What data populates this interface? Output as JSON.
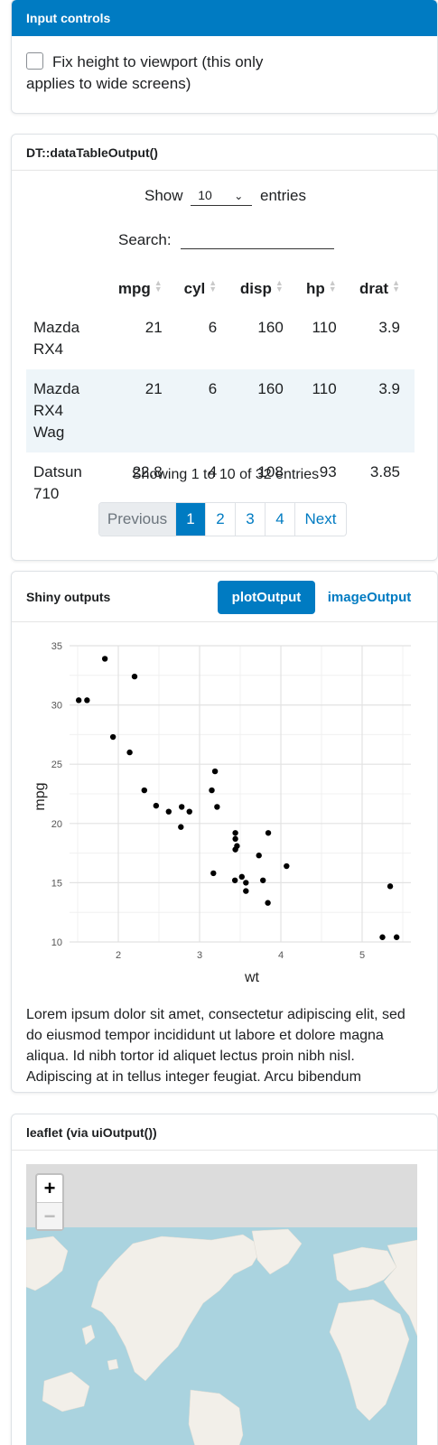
{
  "input_card": {
    "title": "Input controls",
    "checkbox_label": "Fix height to viewport (this only applies to wide screens)",
    "checked": false
  },
  "dt_card": {
    "title": "DT::dataTableOutput()",
    "show_label": "Show",
    "entries_label": "entries",
    "length_value": "10",
    "search_label": "Search:",
    "search_value": "",
    "columns": [
      "mpg",
      "cyl",
      "disp",
      "hp",
      "drat"
    ],
    "rows": [
      {
        "name": "Mazda RX4",
        "mpg": "21",
        "cyl": "6",
        "disp": "160",
        "hp": "110",
        "drat": "3.9"
      },
      {
        "name": "Mazda RX4 Wag",
        "mpg": "21",
        "cyl": "6",
        "disp": "160",
        "hp": "110",
        "drat": "3.9"
      },
      {
        "name": "Datsun 710",
        "mpg": "22.8",
        "cyl": "4",
        "disp": "108",
        "hp": "93",
        "drat": "3.85"
      }
    ],
    "info": "Showing 1 to 10 of 32 entries",
    "pager": {
      "previous": "Previous",
      "pages": [
        "1",
        "2",
        "3",
        "4"
      ],
      "active": "1",
      "next": "Next"
    }
  },
  "shiny_card": {
    "title": "Shiny outputs",
    "tabs": [
      "plotOutput",
      "imageOutput"
    ],
    "active_tab": "plotOutput",
    "lorem": "Lorem ipsum dolor sit amet, consectetur adipiscing elit, sed do eiusmod tempor incididunt ut labore et dolore magna aliqua. Id nibh tortor id aliquet lectus proin nibh nisl. Adipiscing at in tellus integer feugiat. Arcu bibendum"
  },
  "chart_data": {
    "type": "scatter",
    "xlabel": "wt",
    "ylabel": "mpg",
    "xlim": [
      1.4,
      5.6
    ],
    "ylim": [
      10,
      35
    ],
    "xticks": [
      2,
      3,
      4,
      5
    ],
    "yticks": [
      10,
      15,
      20,
      25,
      30,
      35
    ],
    "grid": true,
    "point_color": "#000000",
    "points": [
      [
        2.62,
        21.0
      ],
      [
        2.875,
        21.0
      ],
      [
        2.32,
        22.8
      ],
      [
        3.215,
        21.4
      ],
      [
        3.44,
        18.7
      ],
      [
        3.46,
        18.1
      ],
      [
        3.57,
        14.3
      ],
      [
        3.19,
        24.4
      ],
      [
        3.15,
        22.8
      ],
      [
        3.44,
        19.2
      ],
      [
        3.44,
        17.8
      ],
      [
        4.07,
        16.4
      ],
      [
        3.73,
        17.3
      ],
      [
        3.78,
        15.2
      ],
      [
        5.25,
        10.4
      ],
      [
        5.424,
        10.4
      ],
      [
        5.345,
        14.7
      ],
      [
        2.2,
        32.4
      ],
      [
        1.615,
        30.4
      ],
      [
        1.835,
        33.9
      ],
      [
        2.465,
        21.5
      ],
      [
        3.52,
        15.5
      ],
      [
        3.435,
        15.2
      ],
      [
        3.84,
        13.3
      ],
      [
        3.845,
        19.2
      ],
      [
        1.935,
        27.3
      ],
      [
        2.14,
        26.0
      ],
      [
        1.513,
        30.4
      ],
      [
        3.17,
        15.8
      ],
      [
        2.77,
        19.7
      ],
      [
        3.57,
        15.0
      ],
      [
        2.78,
        21.4
      ]
    ]
  },
  "leaflet_card": {
    "title": "leaflet (via uiOutput())",
    "zoom_in": "+",
    "zoom_out": "−"
  },
  "colors": {
    "accent": "#007bc2",
    "table_stripe": "#eef5f9",
    "map_ocean": "#aad3df",
    "map_land": "#f2efe9"
  }
}
